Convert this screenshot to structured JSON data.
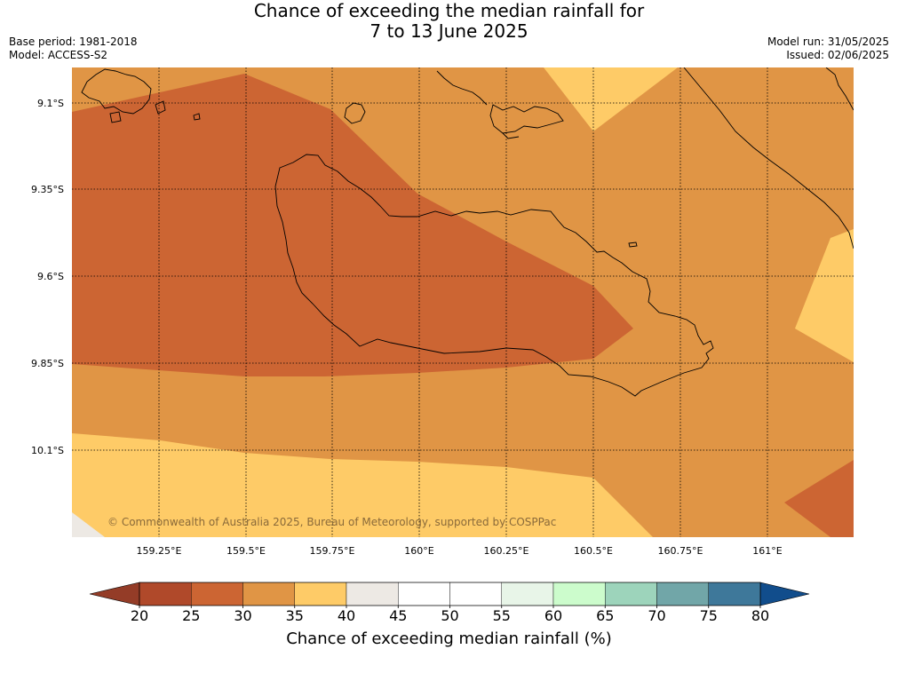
{
  "title": {
    "line1": "Chance of exceeding the median rainfall for",
    "line2": "7 to 13 June 2025"
  },
  "meta": {
    "base_period": "Base period: 1981-2018",
    "model": "Model: ACCESS-S2",
    "model_run": "Model run: 31/05/2025",
    "issued": "Issued: 02/06/2025"
  },
  "map": {
    "lat_labels": [
      "9.1°S",
      "9.35°S",
      "9.6°S",
      "9.85°S",
      "10.1°S"
    ],
    "lon_labels": [
      "159.25°E",
      "159.5°E",
      "159.75°E",
      "160°E",
      "160.25°E",
      "160.5°E",
      "160.75°E",
      "161°E"
    ],
    "copyright": "© Commonwealth of Australia 2025, Bureau of Meteorology, supported by COSPPac"
  },
  "colorbar": {
    "ticks": [
      "20",
      "25",
      "30",
      "35",
      "40",
      "45",
      "50",
      "55",
      "60",
      "65",
      "70",
      "75",
      "80"
    ],
    "colors": [
      "#b0492a",
      "#cc6533",
      "#e09545",
      "#fecb67",
      "#ede9e4",
      "#ffffff",
      "#ffffff",
      "#e8f5e8",
      "#ccfccc",
      "#9dd4bb",
      "#71a6a8",
      "#3e789a"
    ],
    "under_color": "#943c27",
    "over_color": "#114d8c",
    "label": "Chance of exceeding median rainfall (%)"
  }
}
